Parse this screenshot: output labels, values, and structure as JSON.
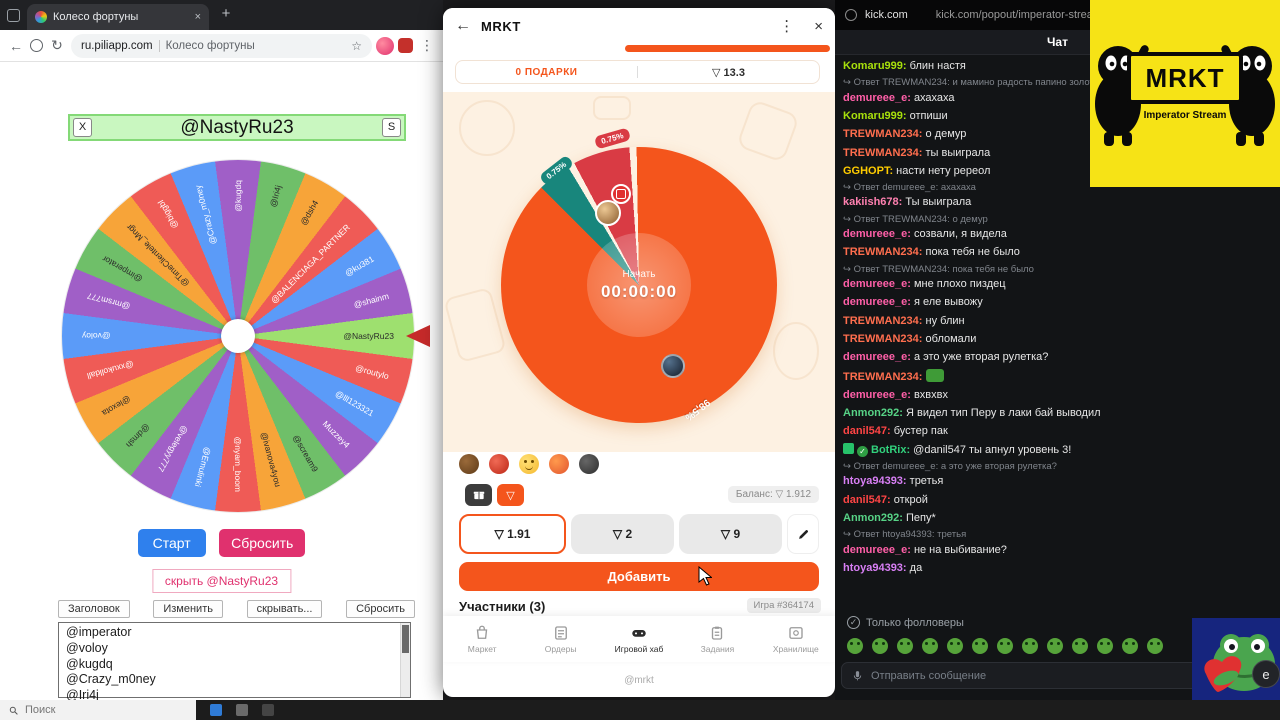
{
  "colors": {
    "mrkt_orange": "#f4551c",
    "wheel_winner_green": "#c9f7c0",
    "teal_segment": "#18867c",
    "red_segment": "#d93b44"
  },
  "icons": {
    "back": "←",
    "menu_dots": "⋮",
    "close": "×",
    "tab_close": "×",
    "new_tab": "+",
    "star": "☆",
    "reload": "↻",
    "reply": "↪",
    "check": "✓",
    "ton": "▽",
    "e_badge": "e"
  },
  "taskbar": {
    "search": "Поиск"
  },
  "browser": {
    "tab_title": "Колесо фортуны",
    "url": "ru.piliapp.com",
    "page_title": "Колесо фортуны"
  },
  "wheel_app": {
    "winner": "@NastyRu23",
    "btn_x": "X",
    "btn_s": "S",
    "start": "Старт",
    "reset": "Сбросить",
    "hide": "скрыть @NastyRu23",
    "controls": [
      "Заголовок",
      "Изменить",
      "скрывать...",
      "Сбросить"
    ],
    "names_list": [
      "@imperator",
      "@voloy",
      "@kugdq",
      "@Crazy_m0ney",
      "@Iri4j"
    ],
    "segments": [
      {
        "name": "@NastyRu23",
        "color": "#9ee06f",
        "tc": "#2b2b2b"
      },
      {
        "name": "@routylo",
        "color": "#ef5b56",
        "tc": "#ffffff"
      },
      {
        "name": "@lll123321",
        "color": "#5b9bf8",
        "tc": "#ffffff"
      },
      {
        "name": "Muzzey4",
        "color": "#a05fc7",
        "tc": "#ffffff"
      },
      {
        "name": "@scream9",
        "color": "#6fbf69",
        "tc": "#2b2b2b"
      },
      {
        "name": "@ivanova4you",
        "color": "#f7a439",
        "tc": "#2b2b2b"
      },
      {
        "name": "@nyam_boom",
        "color": "#ef5b56",
        "tc": "#ffffff"
      },
      {
        "name": "@Emulinki",
        "color": "#5b9bf8",
        "tc": "#ffffff"
      },
      {
        "name": "@velegyy777",
        "color": "#a05fc7",
        "tc": "#ffffff"
      },
      {
        "name": "@dmsh",
        "color": "#6fbf69",
        "tc": "#2b2b2b"
      },
      {
        "name": "@lexota",
        "color": "#f7a439",
        "tc": "#2b2b2b"
      },
      {
        "name": "@xxukolldall",
        "color": "#ef5b56",
        "tc": "#ffffff"
      },
      {
        "name": "@voloy",
        "color": "#5b9bf8",
        "tc": "#ffffff"
      },
      {
        "name": "@mrsm777",
        "color": "#a05fc7",
        "tc": "#ffffff"
      },
      {
        "name": "@imperator",
        "color": "#6fbf69",
        "tc": "#2b2b2b"
      },
      {
        "name": "@TimeClientele_Mngr",
        "color": "#f7a439",
        "tc": "#2b2b2b"
      },
      {
        "name": "@biggbl",
        "color": "#ef5b56",
        "tc": "#ffffff"
      },
      {
        "name": "@Crazy_m0ney",
        "color": "#5b9bf8",
        "tc": "#ffffff"
      },
      {
        "name": "@kugdq",
        "color": "#a05fc7",
        "tc": "#ffffff"
      },
      {
        "name": "@Iri4j",
        "color": "#6fbf69",
        "tc": "#2b2b2b"
      },
      {
        "name": "@dsh4",
        "color": "#f7a439",
        "tc": "#2b2b2b"
      },
      {
        "name": "@BALENCIAGA_PARTNER",
        "color": "#ef5b56",
        "tc": "#ffffff"
      },
      {
        "name": "@ku381",
        "color": "#5b9bf8",
        "tc": "#ffffff"
      },
      {
        "name": "@shainm",
        "color": "#a05fc7",
        "tc": "#ffffff"
      }
    ]
  },
  "mrkt": {
    "title": "MRKT",
    "tab_gifts": "0 ПОДАРКИ",
    "tab_ton": "▽ 13.3",
    "seg_teal_label": "0.75%",
    "seg_red_label": "0.75%",
    "seg_orange_label": "98,5%",
    "center_action": "Начать",
    "timer": "00:00:00",
    "balance": "Баланс: ▽ 1.912",
    "bets": [
      "▽ 1.91",
      "▽ 2",
      "▽ 9"
    ],
    "add": "Добавить",
    "participants": "Участники (3)",
    "game": "Игра #364174",
    "nav": [
      "Маркет",
      "Ордеры",
      "Игровой хаб",
      "Задания",
      "Хранилище"
    ],
    "active_nav_index": 2,
    "footer": "@mrkt"
  },
  "kick": {
    "site": "kick.com",
    "url": "kick.com/popout/imperator-stream...",
    "chat_title": "Чат",
    "followers_only": "Только фолловеры",
    "input_placeholder": "Отправить сообщение",
    "messages": [
      {
        "user": "Komaru999",
        "color": "#a8e10c",
        "text": "блин настя"
      },
      {
        "reply": "Ответ TREWMAN234: и мамино радость папино золото",
        "user": "demureee_e",
        "color": "#ff5fa8",
        "text": "ахахаха"
      },
      {
        "user": "Komaru999",
        "color": "#a8e10c",
        "text": "отпиши"
      },
      {
        "user": "TREWMAN234",
        "color": "#ff6e4e",
        "text": "о демур"
      },
      {
        "user": "TREWMAN234",
        "color": "#ff6e4e",
        "text": "ты выиграла"
      },
      {
        "user": "GGHOPT",
        "color": "#ffcc00",
        "text": "насти нету ререол"
      },
      {
        "reply": "Ответ demureee_e: ахахаха",
        "user": "kakiish678",
        "color": "#ff80b0",
        "text": "Ты выиграла"
      },
      {
        "reply": "Ответ TREWMAN234: о демур",
        "user": "demureee_e",
        "color": "#ff5fa8",
        "text": "созвали, я видела"
      },
      {
        "user": "TREWMAN234",
        "color": "#ff6e4e",
        "text": "пока тебя не было"
      },
      {
        "reply": "Ответ TREWMAN234: пока тебя не было",
        "user": "demureee_e",
        "color": "#ff5fa8",
        "text": "мне плохо пиздец"
      },
      {
        "user": "demureee_e",
        "color": "#ff5fa8",
        "text": "я еле вывожу"
      },
      {
        "user": "TREWMAN234",
        "color": "#ff6e4e",
        "text": "ну блин"
      },
      {
        "user": "TREWMAN234",
        "color": "#ff6e4e",
        "text": "обломали"
      },
      {
        "user": "demureee_e",
        "color": "#ff5fa8",
        "text": "а это уже вторая рулетка?"
      },
      {
        "user": "TREWMAN234",
        "color": "#ff6e4e",
        "text": "",
        "emote": true
      },
      {
        "user": "demureee_e",
        "color": "#ff5fa8",
        "text": "вхвхвх"
      },
      {
        "user": "Anmon292",
        "color": "#57d386",
        "text": "Я видел тип Перу в лаки бай выводил"
      },
      {
        "user": "danil547",
        "color": "#ff4545",
        "text": "бустер пак"
      },
      {
        "user": "BotRix",
        "color": "#31d17c",
        "badges": true,
        "text": "@danil547 ты апнул уровень 3!"
      },
      {
        "reply": "Ответ demureee_e: а это уже вторая рулетка?",
        "user": "htoya94393",
        "color": "#d87ff5",
        "text": "третья"
      },
      {
        "user": "danil547",
        "color": "#ff4545",
        "text": "открой"
      },
      {
        "user": "Anmon292",
        "color": "#57d386",
        "text": "Пепу*"
      },
      {
        "reply": "Ответ htoya94393: третья",
        "user": "demureee_e",
        "color": "#ff5fa8",
        "text": "не на выбивание?"
      },
      {
        "user": "htoya94393",
        "color": "#d87ff5",
        "text": "да"
      }
    ]
  },
  "logo": {
    "title": "MRKT",
    "subtitle": "Imperator Stream"
  }
}
